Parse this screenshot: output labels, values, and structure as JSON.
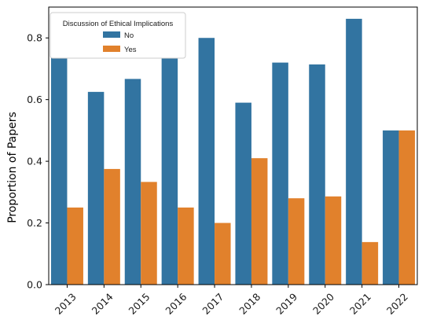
{
  "chart_data": {
    "type": "bar",
    "title": "",
    "xlabel": "",
    "ylabel": "Proportion of Papers",
    "ylim": [
      0,
      0.9
    ],
    "yticks": [
      0.0,
      0.2,
      0.4,
      0.6,
      0.8
    ],
    "ytick_labels": [
      "0.0",
      "0.2",
      "0.4",
      "0.6",
      "0.8"
    ],
    "categories": [
      "2013",
      "2014",
      "2015",
      "2016",
      "2017",
      "2018",
      "2019",
      "2020",
      "2021",
      "2022"
    ],
    "legend": {
      "title": "Discussion of Ethical Implications",
      "placement": "top-left"
    },
    "grid": false,
    "series": [
      {
        "name": "No",
        "color": "#3274a1",
        "values": [
          0.75,
          0.625,
          0.667,
          0.75,
          0.8,
          0.59,
          0.72,
          0.714,
          0.862,
          0.5
        ]
      },
      {
        "name": "Yes",
        "color": "#e1812c",
        "values": [
          0.25,
          0.375,
          0.333,
          0.25,
          0.2,
          0.41,
          0.28,
          0.286,
          0.138,
          0.5
        ]
      }
    ]
  }
}
